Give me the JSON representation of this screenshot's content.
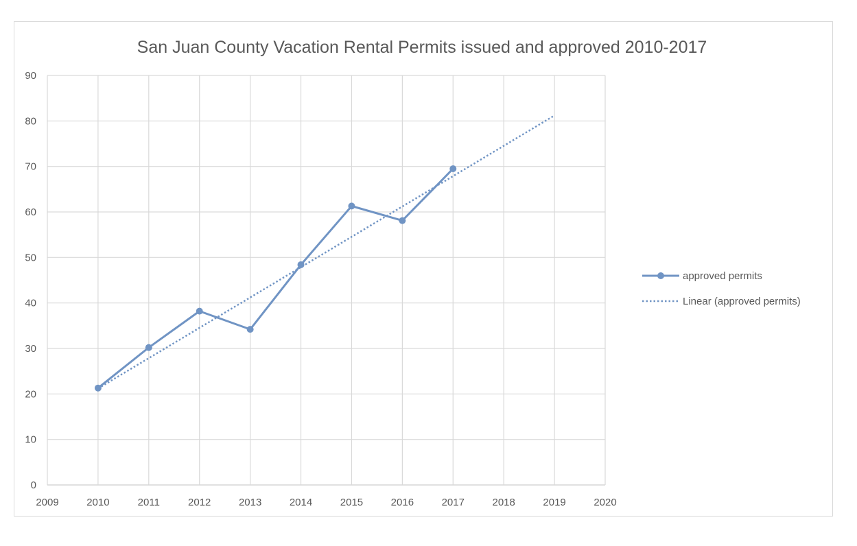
{
  "chart_data": {
    "type": "line",
    "title": "San Juan County Vacation Rental Permits issued and approved 2010-2017",
    "xlabel": "",
    "ylabel": "",
    "xlim": [
      2009,
      2020
    ],
    "ylim": [
      0,
      90
    ],
    "x_ticks": [
      2009,
      2010,
      2011,
      2012,
      2013,
      2014,
      2015,
      2016,
      2017,
      2018,
      2019,
      2020
    ],
    "y_ticks": [
      0,
      10,
      20,
      30,
      40,
      50,
      60,
      70,
      80,
      90
    ],
    "grid": "on",
    "legend_position": "right",
    "series": [
      {
        "name": "approved permits",
        "kind": "line-with-markers",
        "color": "#7094c4",
        "x": [
          2010,
          2011,
          2012,
          2013,
          2014,
          2015,
          2016,
          2017
        ],
        "y": [
          21.3,
          30.2,
          38.2,
          34.2,
          48.4,
          61.3,
          58.1,
          69.5
        ]
      },
      {
        "name": "Linear (approved permits)",
        "kind": "dotted-trendline",
        "color": "#7094c4",
        "x": [
          2010,
          2019
        ],
        "y": [
          21.2,
          81.2
        ]
      }
    ]
  }
}
